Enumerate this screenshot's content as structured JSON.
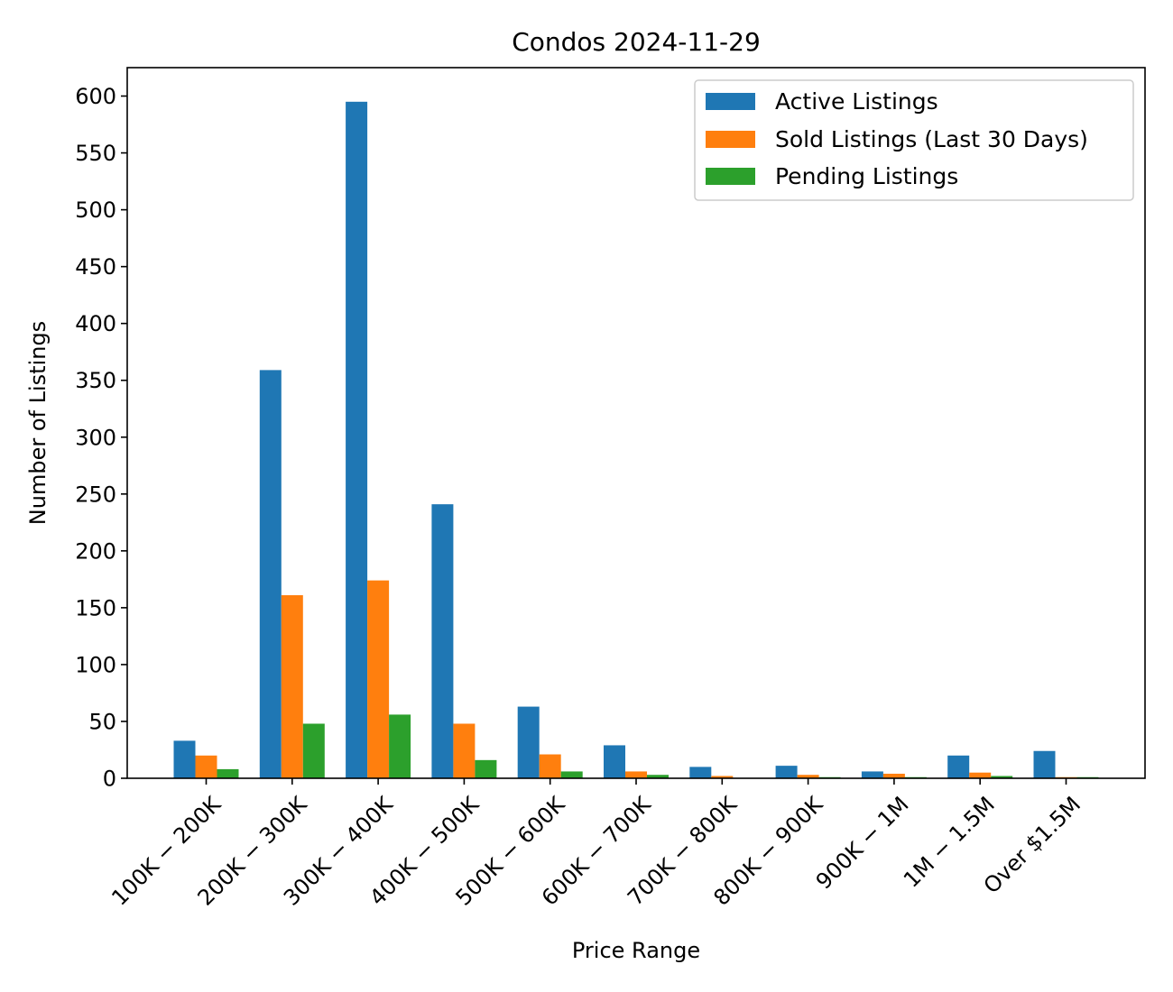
{
  "chart_data": {
    "type": "bar",
    "title": "Condos 2024-11-29",
    "xlabel": "Price Range",
    "ylabel": "Number of Listings",
    "ylim": [
      0,
      625
    ],
    "yticks": [
      0,
      50,
      100,
      150,
      200,
      250,
      300,
      350,
      400,
      450,
      500,
      550,
      600
    ],
    "categories": [
      "$100K - $200K",
      "$200K - $300K",
      "$300K - $400K",
      "$400K - $500K",
      "$500K - $600K",
      "$600K - $700K",
      "$700K - $800K",
      "$800K - $900K",
      "$900K - $1M",
      "$1M - $1.5M",
      "Over $1.5M"
    ],
    "category_labels_rendered": [
      "100K − 200K",
      "200K − 300K",
      "300K − 400K",
      "400K − 500K",
      "500K − 600K",
      "600K − 700K",
      "700K − 800K",
      "800K − 900K",
      "900K − 1M",
      "1M − 1.5M",
      "Over $1.5M"
    ],
    "series": [
      {
        "name": "Active Listings",
        "color": "#1f77b4",
        "values": [
          33,
          359,
          595,
          241,
          63,
          29,
          10,
          11,
          6,
          20,
          24
        ]
      },
      {
        "name": "Sold Listings (Last 30 Days)",
        "color": "#ff7f0e",
        "values": [
          20,
          161,
          174,
          48,
          21,
          6,
          2,
          3,
          4,
          5,
          1
        ]
      },
      {
        "name": "Pending Listings",
        "color": "#2ca02c",
        "values": [
          8,
          48,
          56,
          16,
          6,
          3,
          0,
          1,
          1,
          2,
          1
        ]
      }
    ],
    "legend_position": "top-right",
    "grid": false,
    "x_tick_rotation_deg": 45
  }
}
